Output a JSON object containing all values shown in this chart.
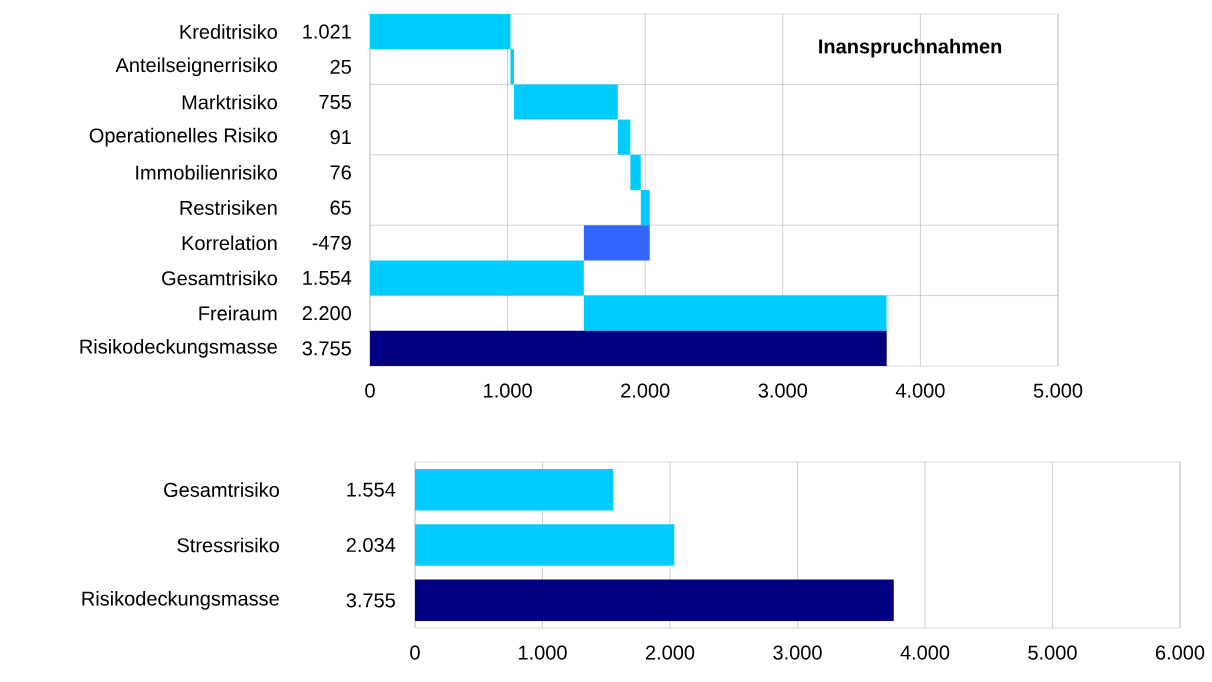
{
  "chart_data": [
    {
      "type": "bar",
      "orientation": "horizontal",
      "title": "Inanspruchnahmen",
      "categories": [
        "Kreditrisiko",
        "Anteilseignerrisiko",
        "Marktrisiko",
        "Operationelles Risiko",
        "Immobilienrisiko",
        "Restrisiken",
        "Korrelation",
        "Gesamtrisiko",
        "Freiraum",
        "Risikodeckungsmasse"
      ],
      "values": [
        1021,
        25,
        755,
        91,
        76,
        65,
        -479,
        1554,
        2200,
        3755
      ],
      "base": [
        0,
        1021,
        1046,
        1801,
        1892,
        1968,
        2033,
        0,
        1554,
        0
      ],
      "value_labels": [
        "1.021",
        "25",
        "755",
        "91",
        "76",
        "65",
        "-479",
        "1.554",
        "2.200",
        "3.755"
      ],
      "colors": [
        "#00ccff",
        "#00ccff",
        "#00ccff",
        "#00ccff",
        "#00ccff",
        "#00ccff",
        "#3366ff",
        "#00ccff",
        "#00ccff",
        "#000080"
      ],
      "xlim": [
        0,
        5000
      ],
      "xticks": [
        0,
        {
          "value": 1000,
          "label": "1.000"
        },
        {
          "value": 2000,
          "label": "2.000"
        },
        {
          "value": 3000,
          "label": "3.000"
        },
        {
          "value": 4000,
          "label": "4.000"
        },
        {
          "value": 5000,
          "label": "5.000"
        }
      ],
      "grid": true
    },
    {
      "type": "bar",
      "orientation": "horizontal",
      "categories": [
        "Gesamtrisiko",
        "Stressrisiko",
        "Risikodeckungsmasse"
      ],
      "values": [
        1554,
        2034,
        3755
      ],
      "value_labels": [
        "1.554",
        "2.034",
        "3.755"
      ],
      "colors": [
        "#00ccff",
        "#00ccff",
        "#000080"
      ],
      "xlim": [
        0,
        6000
      ],
      "xticks": [
        0,
        {
          "value": 1000,
          "label": "1.000"
        },
        {
          "value": 2000,
          "label": "2.000"
        },
        {
          "value": 3000,
          "label": "3.000"
        },
        {
          "value": 4000,
          "label": "4.000"
        },
        {
          "value": 5000,
          "label": "5.000"
        },
        {
          "value": 6000,
          "label": "6.000"
        }
      ],
      "grid": "x"
    }
  ]
}
